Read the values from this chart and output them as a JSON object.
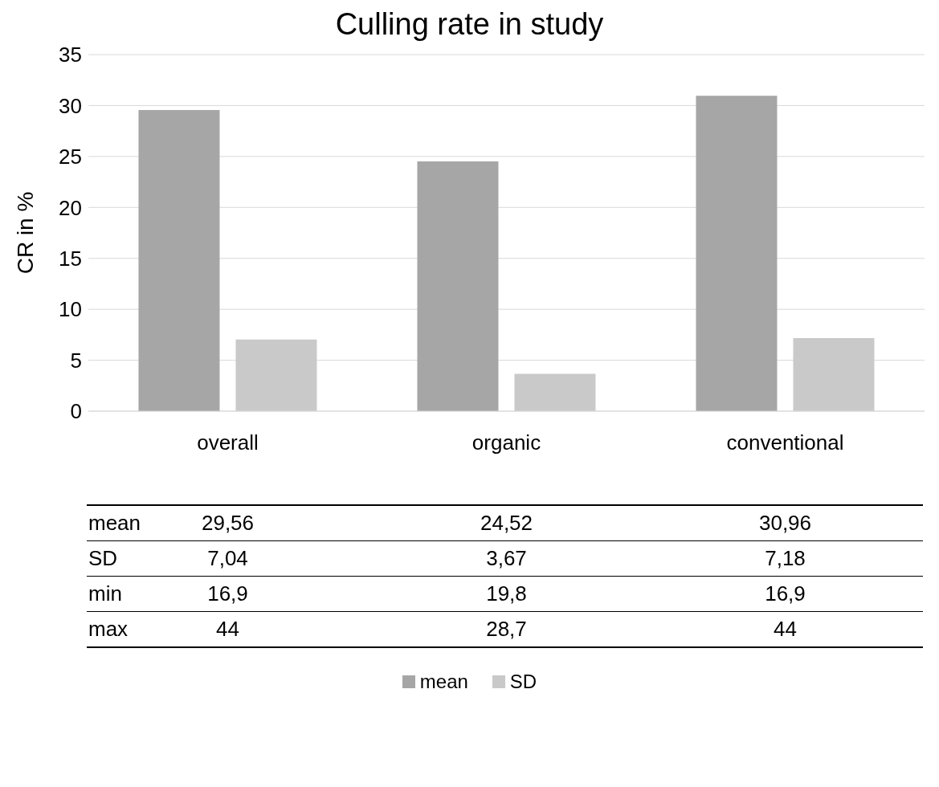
{
  "chart_data": {
    "type": "bar",
    "title": "Culling rate in study",
    "ylabel": "CR in %",
    "categories": [
      "overall",
      "organic",
      "conventional"
    ],
    "series": [
      {
        "name": "mean",
        "color": "#a6a6a6",
        "values": [
          29.56,
          24.52,
          30.96
        ],
        "value_labels": [
          "29,56",
          "24,52",
          "30,96"
        ]
      },
      {
        "name": "SD",
        "color": "#c9c9c9",
        "values": [
          7.04,
          3.67,
          7.18
        ],
        "value_labels": [
          "7,04",
          "3,67",
          "7,18"
        ]
      }
    ],
    "annotations": [
      "min",
      "16,9",
      "19,8",
      "16,9",
      "max",
      "44",
      "28,7",
      "44"
    ],
    "ylim": [
      0,
      35
    ],
    "yticks": [
      0,
      5,
      10,
      15,
      20,
      25,
      30,
      35
    ],
    "grid": "y",
    "legend": "bottom"
  }
}
